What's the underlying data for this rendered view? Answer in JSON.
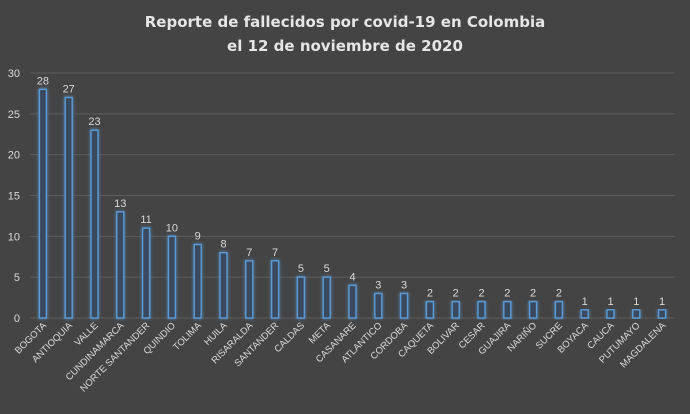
{
  "chart_data": {
    "type": "bar",
    "title": "Reporte de fallecidos por covid-19 en Colombia el 12 de noviembre de 2020",
    "title_lines": [
      "Reporte de fallecidos por covid-19 en Colombia",
      "el 12 de noviembre de 2020"
    ],
    "xlabel": "",
    "ylabel": "",
    "ylim": [
      0,
      30
    ],
    "yticks": [
      0,
      5,
      10,
      15,
      20,
      25,
      30
    ],
    "grid": true,
    "legend": "none",
    "categories": [
      "BOGOTA",
      "ANTIOQUIA",
      "VALLE",
      "CUNDINAMARCA",
      "NORTE SANTANDER",
      "QUINDIO",
      "TOLIMA",
      "HUILA",
      "RISARALDA",
      "SANTANDER",
      "CALDAS",
      "META",
      "CASANARE",
      "ATLANTICO",
      "CORDOBA",
      "CAQUETA",
      "BOLIVAR",
      "CESAR",
      "GUAJIRA",
      "NARIÑO",
      "SUCRE",
      "BOYACA",
      "CAUCA",
      "PUTUMAYO",
      "MAGDALENA"
    ],
    "values": [
      28,
      27,
      23,
      13,
      11,
      10,
      9,
      8,
      7,
      7,
      5,
      5,
      4,
      3,
      3,
      2,
      2,
      2,
      2,
      2,
      2,
      1,
      1,
      1,
      1
    ],
    "colors": {
      "background": "#444444",
      "bar_fill": "#3a4a5e",
      "bar_stroke": "#5b9bd5",
      "bar_glow": "#2f6fb8",
      "grid": "#5c5c5c",
      "text": "#d9d9d9",
      "title": "#e6e6e6"
    }
  }
}
